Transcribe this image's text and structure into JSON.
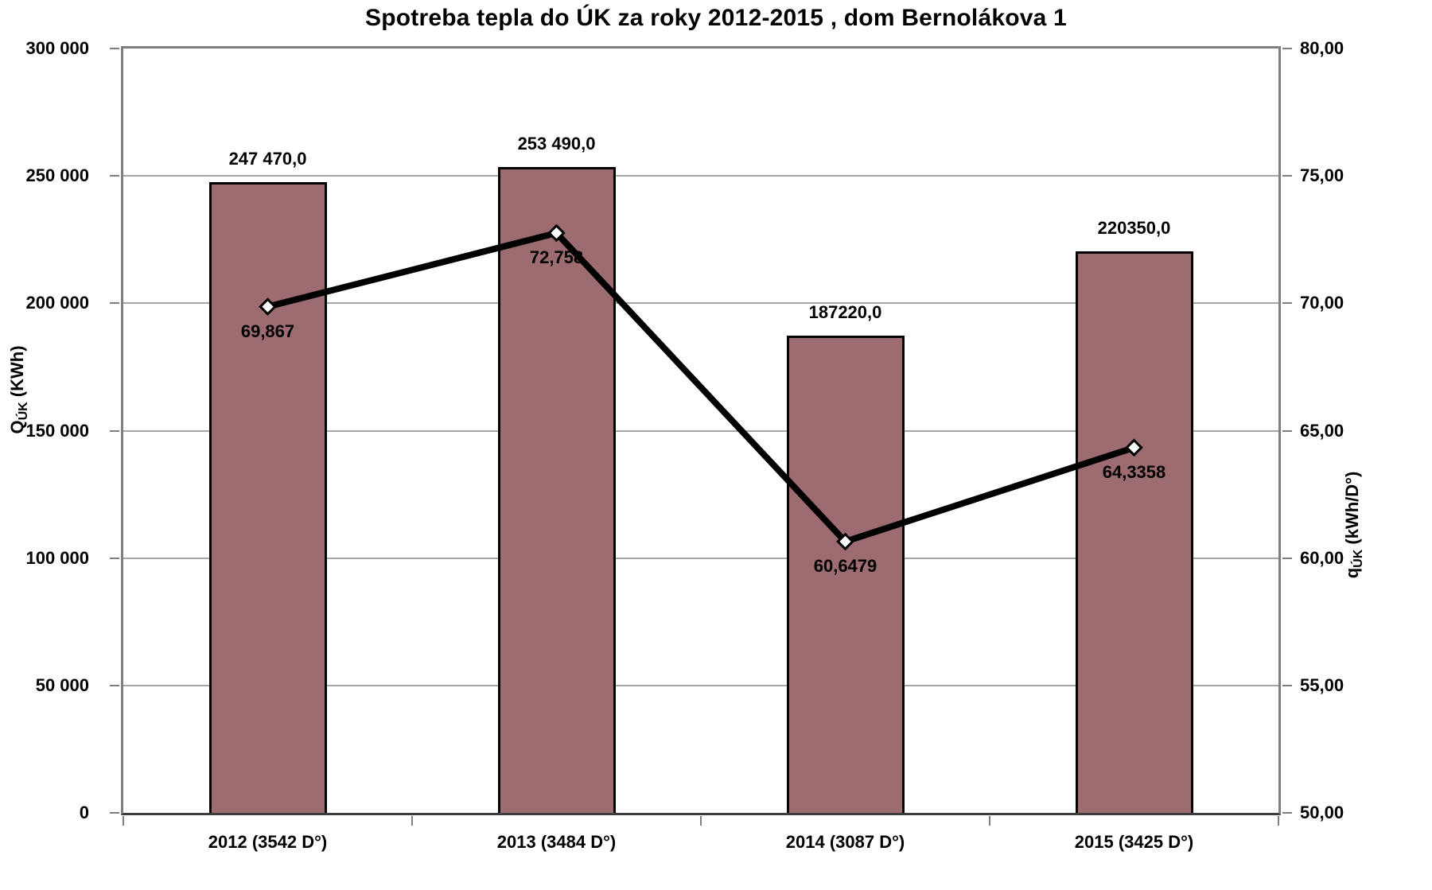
{
  "chart_data": {
    "type": "bar",
    "combo": "bar + line, dual y-axes",
    "title": "Spotreba tepla do ÚK za roky 2012-2015 , dom Bernolákova 1",
    "categories": [
      "2012 (3542 D°)",
      "2013 (3484 D°)",
      "2014 (3087 D°)",
      "2015 (3425 D°)"
    ],
    "series": [
      {
        "name": "QÚK (KWh)",
        "type": "bar",
        "axis": "left",
        "values": [
          247470,
          253490,
          187220,
          220350
        ],
        "value_labels": [
          "247 470,0",
          "253 490,0",
          "187220,0",
          "220350,0"
        ],
        "color": "#9C6C70"
      },
      {
        "name": "qÚK (kWh/D°)",
        "type": "line",
        "axis": "right",
        "values": [
          69.867,
          72.758,
          60.6479,
          64.3358
        ],
        "value_labels": [
          "69,867",
          "72,758",
          "60,6479",
          "64,3358"
        ],
        "color": "#000000",
        "marker": "white diamond, black outline"
      }
    ],
    "left_axis": {
      "title_main": "Q",
      "title_sub": "ÚK",
      "title_unit": " (KWh)",
      "min": 0,
      "max": 300000,
      "step": 50000,
      "ticks": [
        "300 000",
        "250 000",
        "200 000",
        "150 000",
        "100 000",
        "50 000",
        "0"
      ]
    },
    "right_axis": {
      "title_main": "q",
      "title_sub": "ÚK",
      "title_unit": " (kWh/D°)",
      "min": 50,
      "max": 80,
      "step": 5,
      "ticks": [
        "80,00",
        "75,00",
        "70,00",
        "65,00",
        "60,00",
        "55,00",
        "50,00"
      ]
    },
    "grid": true,
    "legend": false,
    "colors": {
      "bar_fill": "#9C6C70",
      "bar_border": "#000000",
      "line": "#000000",
      "marker_fill": "#ffffff",
      "gridline": "#a6a6a6",
      "plot_border": "#7f7f7f",
      "background": "#ffffff"
    }
  }
}
